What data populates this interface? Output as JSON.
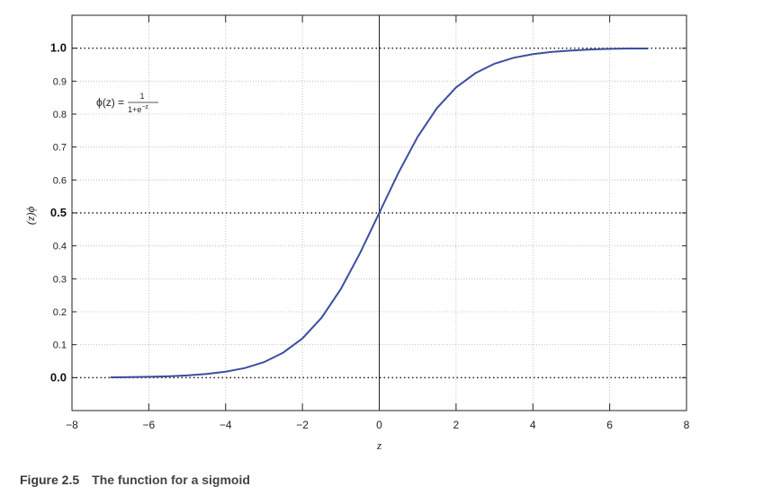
{
  "chart_data": {
    "type": "line",
    "function": "sigmoid",
    "x": [
      -7,
      -6.5,
      -6,
      -5.5,
      -5,
      -4.5,
      -4,
      -3.5,
      -3,
      -2.5,
      -2,
      -1.5,
      -1,
      -0.5,
      0,
      0.5,
      1,
      1.5,
      2,
      2.5,
      3,
      3.5,
      4,
      4.5,
      5,
      5.5,
      6,
      6.5,
      7
    ],
    "series": [
      {
        "values": [
          0.0009,
          0.0015,
          0.0025,
          0.0041,
          0.0067,
          0.011,
          0.018,
          0.029,
          0.047,
          0.076,
          0.119,
          0.182,
          0.269,
          0.378,
          0.5,
          0.622,
          0.731,
          0.818,
          0.881,
          0.924,
          0.953,
          0.971,
          0.982,
          0.989,
          0.993,
          0.996,
          0.998,
          0.999,
          0.999
        ],
        "color": "#3b4fa0"
      }
    ],
    "xlabel": "z",
    "ylabel": "ϕ(z)",
    "xlim": [
      -8,
      8
    ],
    "ylim": [
      -0.1,
      1.1
    ],
    "x_ticks": [
      "−8",
      "−6",
      "−4",
      "−2",
      "0",
      "2",
      "4",
      "6",
      "8"
    ],
    "y_ticks": [
      "0.0",
      "0.1",
      "0.2",
      "0.3",
      "0.4",
      "0.5",
      "0.6",
      "0.7",
      "0.8",
      "0.9",
      "1.0"
    ],
    "y_major_ticks": [
      "0.0",
      "0.5",
      "1.0"
    ],
    "grid": true,
    "vertical_line_x": 0,
    "annotation": {
      "lhs": "ϕ(z) =",
      "numerator": "1",
      "denominator_base": "1+e",
      "denominator_exp": "−z"
    }
  },
  "caption": {
    "figure_number": "Figure 2.5",
    "text": "The function for a sigmoid"
  },
  "colors": {
    "curve": "#3b4fa0",
    "grid": "#b5b5b5",
    "axes": "#222222",
    "caption": "#444444"
  }
}
